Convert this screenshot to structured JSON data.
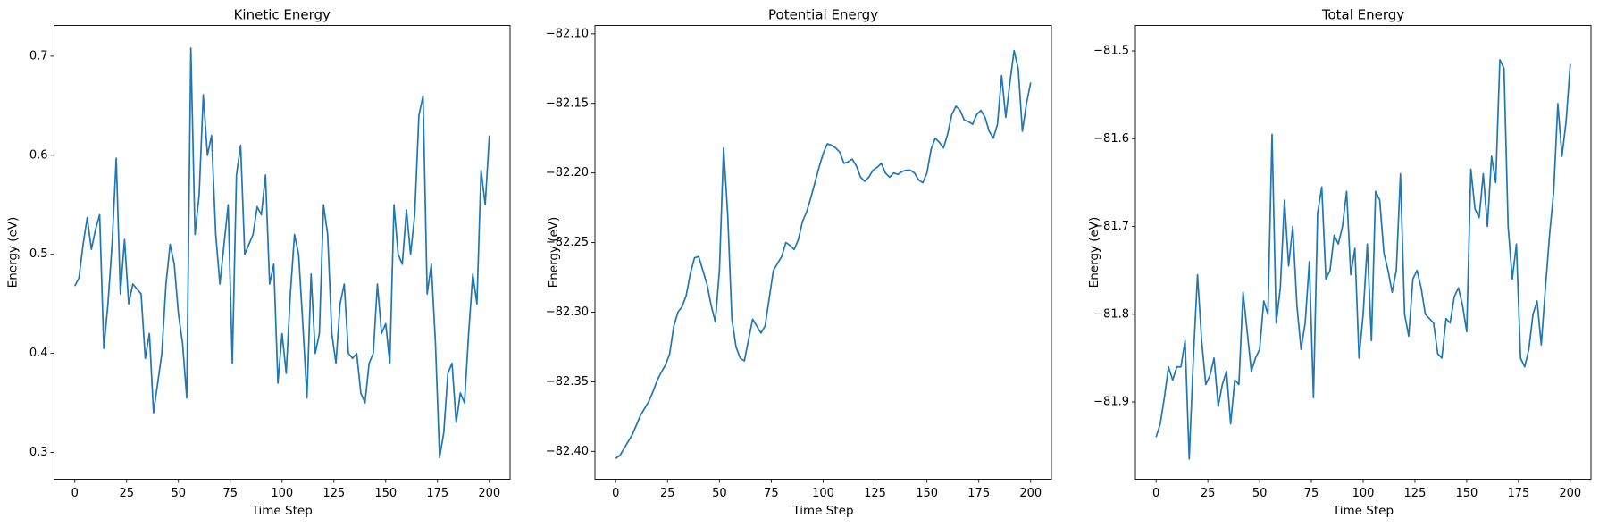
{
  "chart_data": [
    {
      "type": "line",
      "title": "Kinetic Energy",
      "x_label": "Time Step",
      "y_label": "Energy (eV)",
      "color": "#1f77b4",
      "xlim": [
        -10,
        210
      ],
      "xticks": [
        0,
        25,
        50,
        75,
        100,
        125,
        150,
        175,
        200
      ],
      "ylim": [
        0.273,
        0.731
      ],
      "yticks": [
        0.3,
        0.4,
        0.5,
        0.6,
        0.7
      ],
      "x": [
        0,
        2,
        4,
        6,
        8,
        10,
        12,
        14,
        16,
        18,
        20,
        22,
        24,
        26,
        28,
        30,
        32,
        34,
        36,
        38,
        40,
        42,
        44,
        46,
        48,
        50,
        52,
        54,
        56,
        58,
        60,
        62,
        64,
        66,
        68,
        70,
        72,
        74,
        76,
        78,
        80,
        82,
        84,
        86,
        88,
        90,
        92,
        94,
        96,
        98,
        100,
        102,
        104,
        106,
        108,
        110,
        112,
        114,
        116,
        118,
        120,
        122,
        124,
        126,
        128,
        130,
        132,
        134,
        136,
        138,
        140,
        142,
        144,
        146,
        148,
        150,
        152,
        154,
        156,
        158,
        160,
        162,
        164,
        166,
        168,
        170,
        172,
        174,
        176,
        178,
        180,
        182,
        184,
        186,
        188,
        190,
        192,
        194,
        196,
        198,
        200
      ],
      "values": [
        0.468,
        0.476,
        0.51,
        0.537,
        0.505,
        0.525,
        0.54,
        0.405,
        0.45,
        0.51,
        0.597,
        0.46,
        0.515,
        0.45,
        0.47,
        0.465,
        0.46,
        0.395,
        0.42,
        0.34,
        0.37,
        0.4,
        0.47,
        0.51,
        0.49,
        0.44,
        0.41,
        0.355,
        0.708,
        0.52,
        0.56,
        0.661,
        0.6,
        0.62,
        0.52,
        0.47,
        0.51,
        0.55,
        0.39,
        0.58,
        0.61,
        0.5,
        0.51,
        0.52,
        0.548,
        0.54,
        0.58,
        0.47,
        0.49,
        0.37,
        0.42,
        0.38,
        0.46,
        0.52,
        0.5,
        0.43,
        0.355,
        0.48,
        0.4,
        0.42,
        0.55,
        0.52,
        0.42,
        0.39,
        0.45,
        0.47,
        0.4,
        0.395,
        0.4,
        0.36,
        0.35,
        0.39,
        0.4,
        0.47,
        0.42,
        0.43,
        0.39,
        0.55,
        0.5,
        0.49,
        0.545,
        0.5,
        0.54,
        0.64,
        0.66,
        0.46,
        0.49,
        0.41,
        0.295,
        0.32,
        0.38,
        0.39,
        0.33,
        0.36,
        0.35,
        0.42,
        0.48,
        0.45,
        0.585,
        0.55,
        0.62
      ]
    },
    {
      "type": "line",
      "title": "Potential Energy",
      "x_label": "Time Step",
      "y_label": "Energy (eV)",
      "color": "#1f77b4",
      "xlim": [
        -10,
        210
      ],
      "xticks": [
        0,
        25,
        50,
        75,
        100,
        125,
        150,
        175,
        200
      ],
      "ylim": [
        -82.42,
        -82.094
      ],
      "yticks": [
        {
          "value": -82.4,
          "label": "−82.40"
        },
        {
          "value": -82.35,
          "label": "−82.35"
        },
        {
          "value": -82.3,
          "label": "−82.30"
        },
        {
          "value": -82.25,
          "label": "−82.25"
        },
        {
          "value": -82.2,
          "label": "−82.20"
        },
        {
          "value": -82.15,
          "label": "−82.15"
        },
        {
          "value": -82.1,
          "label": "−82.10"
        }
      ],
      "x": [
        0,
        2,
        4,
        6,
        8,
        10,
        12,
        14,
        16,
        18,
        20,
        22,
        24,
        26,
        28,
        30,
        32,
        34,
        36,
        38,
        40,
        42,
        44,
        46,
        48,
        50,
        52,
        54,
        56,
        58,
        60,
        62,
        64,
        66,
        68,
        70,
        72,
        74,
        76,
        78,
        80,
        82,
        84,
        86,
        88,
        90,
        92,
        94,
        96,
        98,
        100,
        102,
        104,
        106,
        108,
        110,
        112,
        114,
        116,
        118,
        120,
        122,
        124,
        126,
        128,
        130,
        132,
        134,
        136,
        138,
        140,
        142,
        144,
        146,
        148,
        150,
        152,
        154,
        156,
        158,
        160,
        162,
        164,
        166,
        168,
        170,
        172,
        174,
        176,
        178,
        180,
        182,
        184,
        186,
        188,
        190,
        192,
        194,
        196,
        198,
        200
      ],
      "values": [
        -82.405,
        -82.403,
        -82.398,
        -82.393,
        -82.388,
        -82.381,
        -82.374,
        -82.369,
        -82.364,
        -82.357,
        -82.349,
        -82.343,
        -82.338,
        -82.33,
        -82.31,
        -82.3,
        -82.296,
        -82.288,
        -82.272,
        -82.261,
        -82.26,
        -82.27,
        -82.28,
        -82.295,
        -82.307,
        -82.27,
        -82.182,
        -82.23,
        -82.305,
        -82.325,
        -82.333,
        -82.335,
        -82.32,
        -82.305,
        -82.31,
        -82.315,
        -82.31,
        -82.29,
        -82.27,
        -82.265,
        -82.26,
        -82.25,
        -82.252,
        -82.255,
        -82.248,
        -82.235,
        -82.228,
        -82.218,
        -82.207,
        -82.196,
        -82.186,
        -82.179,
        -82.18,
        -82.182,
        -82.185,
        -82.193,
        -82.192,
        -82.19,
        -82.195,
        -82.203,
        -82.206,
        -82.203,
        -82.198,
        -82.196,
        -82.193,
        -82.2,
        -82.203,
        -82.2,
        -82.201,
        -82.199,
        -82.198,
        -82.198,
        -82.2,
        -82.205,
        -82.207,
        -82.2,
        -82.183,
        -82.175,
        -82.178,
        -82.182,
        -82.172,
        -82.158,
        -82.152,
        -82.155,
        -82.162,
        -82.163,
        -82.165,
        -82.158,
        -82.155,
        -82.16,
        -82.17,
        -82.175,
        -82.165,
        -82.13,
        -82.16,
        -82.135,
        -82.112,
        -82.125,
        -82.17,
        -82.15,
        -82.135
      ]
    },
    {
      "type": "line",
      "title": "Total Energy",
      "x_label": "Time Step",
      "y_label": "Energy (eV)",
      "color": "#1f77b4",
      "xlim": [
        -10,
        210
      ],
      "xticks": [
        0,
        25,
        50,
        75,
        100,
        125,
        150,
        175,
        200
      ],
      "ylim": [
        -81.988,
        -81.471
      ],
      "yticks": [
        {
          "value": -81.9,
          "label": "−81.9"
        },
        {
          "value": -81.8,
          "label": "−81.8"
        },
        {
          "value": -81.7,
          "label": "−81.7"
        },
        {
          "value": -81.6,
          "label": "−81.6"
        },
        {
          "value": -81.5,
          "label": "−81.5"
        }
      ],
      "x": [
        0,
        2,
        4,
        6,
        8,
        10,
        12,
        14,
        16,
        18,
        20,
        22,
        24,
        26,
        28,
        30,
        32,
        34,
        36,
        38,
        40,
        42,
        44,
        46,
        48,
        50,
        52,
        54,
        56,
        58,
        60,
        62,
        64,
        66,
        68,
        70,
        72,
        74,
        76,
        78,
        80,
        82,
        84,
        86,
        88,
        90,
        92,
        94,
        96,
        98,
        100,
        102,
        104,
        106,
        108,
        110,
        112,
        114,
        116,
        118,
        120,
        122,
        124,
        126,
        128,
        130,
        132,
        134,
        136,
        138,
        140,
        142,
        144,
        146,
        148,
        150,
        152,
        154,
        156,
        158,
        160,
        162,
        164,
        166,
        168,
        170,
        172,
        174,
        176,
        178,
        180,
        182,
        184,
        186,
        188,
        190,
        192,
        194,
        196,
        198,
        200
      ],
      "values": [
        -81.94,
        -81.925,
        -81.895,
        -81.86,
        -81.875,
        -81.86,
        -81.86,
        -81.83,
        -81.965,
        -81.85,
        -81.755,
        -81.83,
        -81.88,
        -81.87,
        -81.85,
        -81.905,
        -81.88,
        -81.865,
        -81.925,
        -81.875,
        -81.88,
        -81.775,
        -81.82,
        -81.865,
        -81.85,
        -81.84,
        -81.785,
        -81.8,
        -81.595,
        -81.81,
        -81.77,
        -81.67,
        -81.745,
        -81.7,
        -81.79,
        -81.84,
        -81.81,
        -81.74,
        -81.895,
        -81.685,
        -81.655,
        -81.76,
        -81.75,
        -81.71,
        -81.72,
        -81.7,
        -81.66,
        -81.755,
        -81.725,
        -81.85,
        -81.8,
        -81.72,
        -81.83,
        -81.66,
        -81.67,
        -81.73,
        -81.75,
        -81.775,
        -81.75,
        -81.64,
        -81.8,
        -81.825,
        -81.76,
        -81.75,
        -81.77,
        -81.8,
        -81.805,
        -81.81,
        -81.845,
        -81.85,
        -81.805,
        -81.81,
        -81.78,
        -81.77,
        -81.79,
        -81.82,
        -81.635,
        -81.68,
        -81.69,
        -81.64,
        -81.7,
        -81.62,
        -81.65,
        -81.51,
        -81.52,
        -81.7,
        -81.76,
        -81.72,
        -81.85,
        -81.86,
        -81.84,
        -81.8,
        -81.785,
        -81.835,
        -81.77,
        -81.71,
        -81.66,
        -81.56,
        -81.62,
        -81.58,
        -81.515
      ]
    }
  ]
}
